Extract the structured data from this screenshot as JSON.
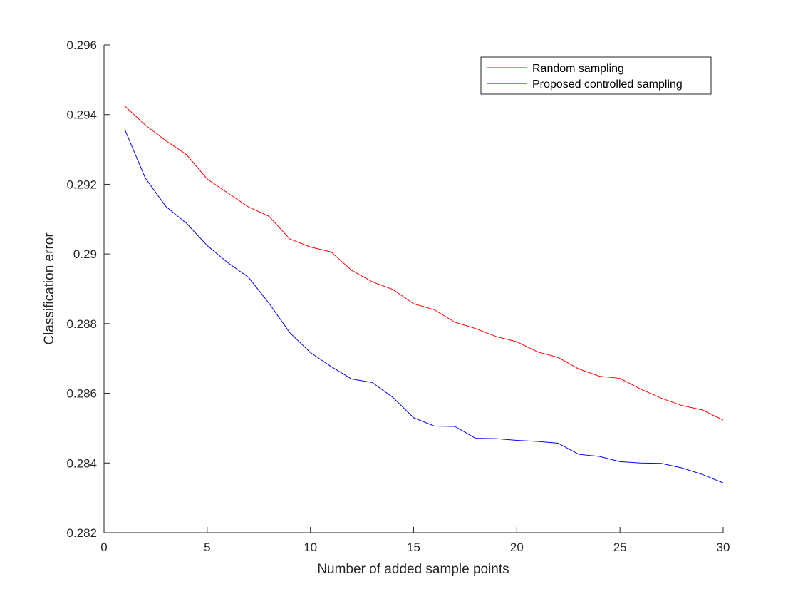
{
  "chart_data": {
    "type": "line",
    "xlabel": "Number of added sample points",
    "ylabel": "Classification error",
    "xlim": [
      0,
      30
    ],
    "ylim": [
      0.282,
      0.296
    ],
    "xticks": [
      0,
      5,
      10,
      15,
      20,
      25,
      30
    ],
    "xtick_labels": [
      "0",
      "5",
      "10",
      "15",
      "20",
      "25",
      "30"
    ],
    "yticks": [
      0.282,
      0.284,
      0.286,
      0.288,
      0.29,
      0.292,
      0.294,
      0.296
    ],
    "ytick_labels": [
      "0.282",
      "0.284",
      "0.286",
      "0.288",
      "0.29",
      "0.292",
      "0.294",
      "0.296"
    ],
    "grid": false,
    "legend_position": "top-right",
    "x": [
      1,
      2,
      3,
      4,
      5,
      6,
      7,
      8,
      9,
      10,
      11,
      12,
      13,
      14,
      15,
      16,
      17,
      18,
      19,
      20,
      21,
      22,
      23,
      24,
      25,
      26,
      27,
      28,
      29,
      30
    ],
    "series": [
      {
        "name": "Random sampling",
        "color": "#ff0000",
        "values": [
          0.29425,
          0.2937,
          0.29325,
          0.29285,
          0.29215,
          0.29175,
          0.29135,
          0.29108,
          0.29043,
          0.2902,
          0.29006,
          0.28953,
          0.2892,
          0.28898,
          0.28857,
          0.2884,
          0.28804,
          0.28786,
          0.28763,
          0.28748,
          0.28719,
          0.28703,
          0.2867,
          0.28649,
          0.28643,
          0.28612,
          0.28586,
          0.28565,
          0.28552,
          0.28523
        ]
      },
      {
        "name": "Proposed controlled sampling",
        "color": "#0000ff",
        "values": [
          0.29358,
          0.29218,
          0.29136,
          0.29088,
          0.29024,
          0.28975,
          0.28933,
          0.28858,
          0.28774,
          0.28717,
          0.28677,
          0.28641,
          0.28631,
          0.28588,
          0.2853,
          0.28506,
          0.28505,
          0.28471,
          0.2847,
          0.28465,
          0.28462,
          0.28457,
          0.28425,
          0.28419,
          0.28404,
          0.284,
          0.28399,
          0.28386,
          0.28367,
          0.28343
        ]
      }
    ]
  }
}
